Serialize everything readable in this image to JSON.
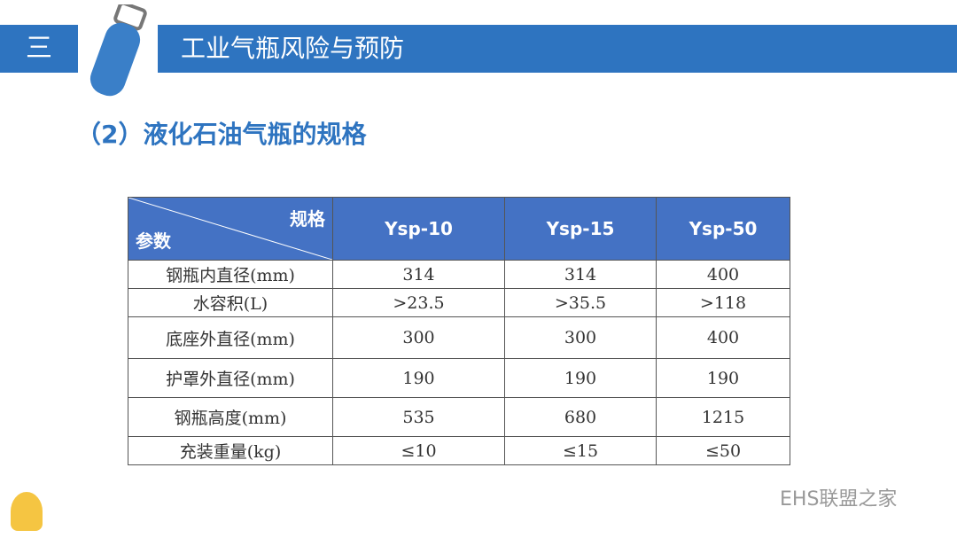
{
  "header": {
    "section": "三",
    "title": "工业气瓶风险与预防"
  },
  "subtitle": "（2）液化石油气瓶的规格",
  "table": {
    "corner_top": "规格",
    "corner_bottom": "参数",
    "columns": [
      "Ysp-10",
      "Ysp-15",
      "Ysp-50"
    ],
    "rows": [
      [
        "钢瓶内直径(mm)",
        "314",
        "314",
        "400"
      ],
      [
        "水容积(L)",
        ">23.5",
        ">35.5",
        ">118"
      ],
      [
        "底座外直径(mm)",
        "300",
        "300",
        "400"
      ],
      [
        "护罩外直径(mm)",
        "190",
        "190",
        "190"
      ],
      [
        "钢瓶高度(mm)",
        "535",
        "680",
        "1215"
      ],
      [
        "充装重量(kg)",
        "≤10",
        "≤15",
        "≤50"
      ]
    ]
  },
  "watermark": "EHS联盟之家"
}
